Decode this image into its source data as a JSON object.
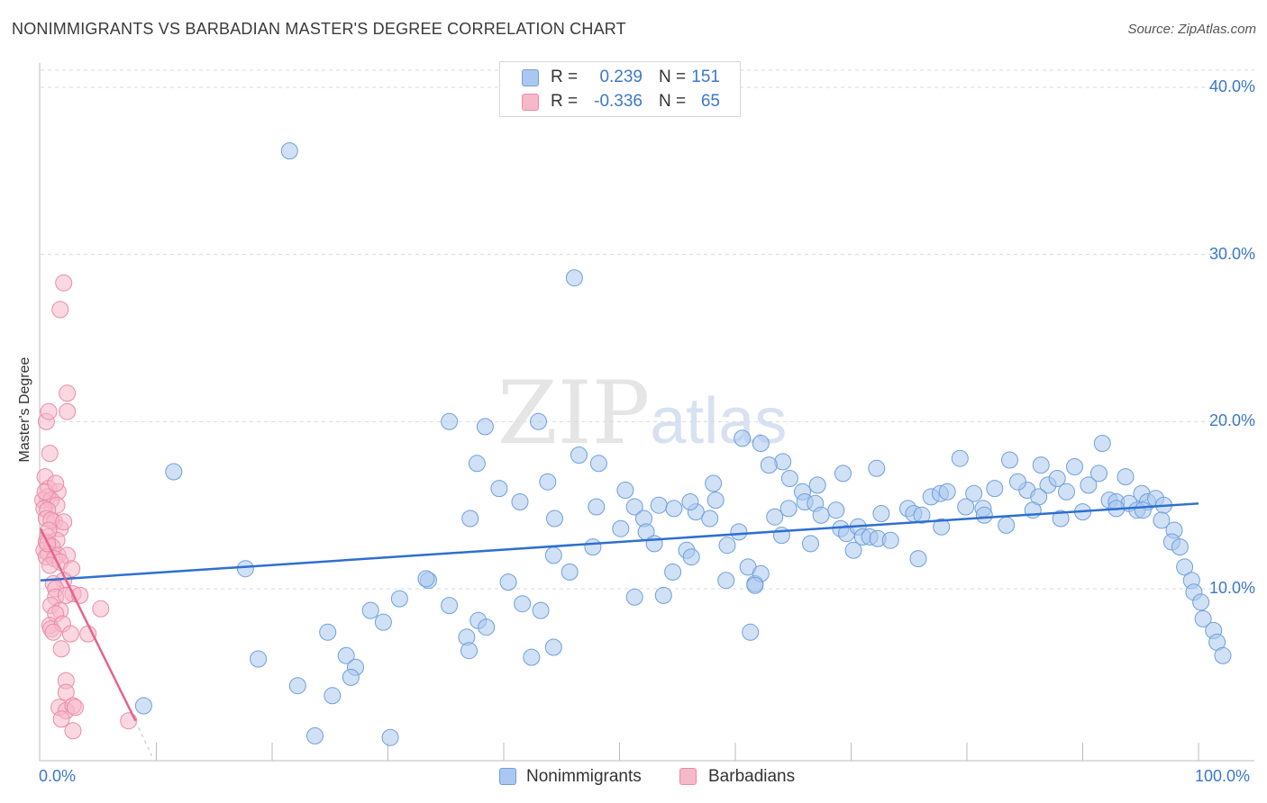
{
  "title": "NONIMMIGRANTS VS BARBADIAN MASTER'S DEGREE CORRELATION CHART",
  "source": "Source: ZipAtlas.com",
  "watermark": {
    "part1": "ZIP",
    "part2": "atlas"
  },
  "legend": {
    "r_label": "R =",
    "n_label": "N =",
    "rows": [
      {
        "name": "Nonimmigrants",
        "r": "0.239",
        "n": "151"
      },
      {
        "name": "Barbadians",
        "r": "-0.336",
        "n": "65"
      }
    ]
  },
  "colors": {
    "blue_fill": "#aac8ef",
    "blue_stroke": "#6f9fdc",
    "blue_line": "#2e6fd0",
    "pink_fill": "#f6b8cb",
    "pink_stroke": "#eb8aa8",
    "pink_line": "#e4648e",
    "tick_text": "#3b78c9",
    "grid": "#d9d9d9"
  },
  "chart_data": {
    "type": "scatter",
    "title": "NONIMMIGRANTS VS BARBADIAN MASTER'S DEGREE CORRELATION CHART",
    "xlabel": "",
    "ylabel": "Master's Degree",
    "xlim": [
      0,
      100
    ],
    "ylim": [
      0,
      42
    ],
    "x_tick_labels": [
      "0.0%",
      "100.0%"
    ],
    "y_ticks": [
      10,
      20,
      30,
      40
    ],
    "y_tick_labels": [
      "10.0%",
      "20.0%",
      "30.0%",
      "40.0%"
    ],
    "legend_position": "top-center",
    "series": [
      {
        "name": "Nonimmigrants",
        "r": 0.239,
        "n": 151,
        "trend": {
          "x": [
            0,
            100
          ],
          "y": [
            10.5,
            15.1
          ]
        },
        "points": [
          [
            21.5,
            36.2
          ],
          [
            46.1,
            28.6
          ],
          [
            11.5,
            17
          ],
          [
            8.9,
            3
          ],
          [
            17.7,
            11.2
          ],
          [
            23.7,
            1.2
          ],
          [
            30.2,
            1.1
          ],
          [
            35.3,
            20.0
          ],
          [
            43,
            20
          ],
          [
            38.4,
            19.7
          ],
          [
            37.7,
            17.5
          ],
          [
            39.6,
            16.0
          ],
          [
            41.4,
            15.2
          ],
          [
            37.1,
            14.2
          ],
          [
            44.4,
            14.2
          ],
          [
            43.8,
            16.4
          ],
          [
            46.5,
            18.0
          ],
          [
            48.2,
            17.5
          ],
          [
            48,
            14.9
          ],
          [
            47.7,
            12.5
          ],
          [
            44.3,
            12.0
          ],
          [
            45.7,
            11
          ],
          [
            50.5,
            15.9
          ],
          [
            51.3,
            14.9
          ],
          [
            52.1,
            14.2
          ],
          [
            50.1,
            13.6
          ],
          [
            52.3,
            13.4
          ],
          [
            53.4,
            15.0
          ],
          [
            54.7,
            14.8
          ],
          [
            53,
            12.7
          ],
          [
            55.8,
            12.3
          ],
          [
            54.6,
            11
          ],
          [
            56.6,
            14.6
          ],
          [
            57.8,
            14.2
          ],
          [
            58.3,
            15.3
          ],
          [
            60.3,
            13.4
          ],
          [
            59.3,
            12.6
          ],
          [
            61.1,
            11.3
          ],
          [
            61.7,
            10.3
          ],
          [
            62.2,
            10.9
          ],
          [
            63.4,
            14.3
          ],
          [
            64,
            13.2
          ],
          [
            64.6,
            14.8
          ],
          [
            65.8,
            15.8
          ],
          [
            66,
            15.2
          ],
          [
            66.9,
            15.1
          ],
          [
            67.4,
            14.4
          ],
          [
            66.5,
            12.7
          ],
          [
            68.7,
            14.7
          ],
          [
            69.1,
            13.6
          ],
          [
            69.6,
            13.3
          ],
          [
            70.2,
            12.3
          ],
          [
            70.6,
            13.7
          ],
          [
            71,
            13.1
          ],
          [
            71.6,
            13.1
          ],
          [
            72.6,
            14.5
          ],
          [
            72.3,
            13.0
          ],
          [
            73.4,
            12.9
          ],
          [
            74.9,
            14.8
          ],
          [
            75.4,
            14.5
          ],
          [
            75.8,
            11.8
          ],
          [
            76.1,
            14.4
          ],
          [
            76.9,
            15.5
          ],
          [
            77.7,
            15.7
          ],
          [
            78.3,
            15.8
          ],
          [
            79.4,
            17.8
          ],
          [
            80.6,
            15.7
          ],
          [
            81.4,
            14.8
          ],
          [
            81.5,
            14.4
          ],
          [
            82.4,
            16.0
          ],
          [
            83.7,
            17.7
          ],
          [
            85.2,
            15.9
          ],
          [
            86.4,
            17.4
          ],
          [
            87,
            16.2
          ],
          [
            87.8,
            16.6
          ],
          [
            86.2,
            15.5
          ],
          [
            88.6,
            15.8
          ],
          [
            88.1,
            14.2
          ],
          [
            89.3,
            17.3
          ],
          [
            91.7,
            18.7
          ],
          [
            90.5,
            16.2
          ],
          [
            91.4,
            16.9
          ],
          [
            92.3,
            15.3
          ],
          [
            92.9,
            15.2
          ],
          [
            94.0,
            15.1
          ],
          [
            95.1,
            15.7
          ],
          [
            95.6,
            15.2
          ],
          [
            96.3,
            15.4
          ],
          [
            97,
            15
          ],
          [
            96.8,
            14.1
          ],
          [
            97.9,
            13.5
          ],
          [
            97.7,
            12.8
          ],
          [
            98.4,
            12.5
          ],
          [
            98.8,
            11.3
          ],
          [
            99.4,
            10.5
          ],
          [
            99.6,
            9.8
          ],
          [
            100.2,
            9.2
          ],
          [
            100.4,
            8.2
          ],
          [
            101.3,
            7.5
          ],
          [
            101.6,
            6.8
          ],
          [
            102.1,
            6.0
          ],
          [
            85.7,
            14.7
          ],
          [
            83.4,
            13.8
          ],
          [
            79.9,
            14.9
          ],
          [
            77.8,
            13.7
          ],
          [
            72.2,
            17.2
          ],
          [
            69.3,
            16.9
          ],
          [
            67.1,
            16.2
          ],
          [
            64.1,
            17.6
          ],
          [
            62.9,
            17.4
          ],
          [
            58.1,
            16.3
          ],
          [
            56.1,
            15.2
          ],
          [
            62.2,
            18.7
          ],
          [
            64.7,
            16.6
          ],
          [
            60.6,
            19.0
          ],
          [
            84.4,
            16.4
          ],
          [
            90,
            14.6
          ],
          [
            93.7,
            16.7
          ],
          [
            92.9,
            14.8
          ],
          [
            94.7,
            14.7
          ],
          [
            95.2,
            14.7
          ],
          [
            18.8,
            5.8
          ],
          [
            22.2,
            4.2
          ],
          [
            25.2,
            3.6
          ],
          [
            26.4,
            6.0
          ],
          [
            27.2,
            5.3
          ],
          [
            26.8,
            4.7
          ],
          [
            24.8,
            7.4
          ],
          [
            28.5,
            8.7
          ],
          [
            29.6,
            8.0
          ],
          [
            31,
            9.4
          ],
          [
            33.5,
            10.5
          ],
          [
            33.3,
            10.6
          ],
          [
            35.3,
            9.0
          ],
          [
            36.8,
            7.1
          ],
          [
            37,
            6.3
          ],
          [
            37.8,
            8.1
          ],
          [
            38.5,
            7.7
          ],
          [
            40.4,
            10.4
          ],
          [
            41.6,
            9.1
          ],
          [
            42.4,
            5.9
          ],
          [
            43.2,
            8.7
          ],
          [
            44.3,
            6.5
          ],
          [
            51.3,
            9.5
          ],
          [
            53.8,
            9.6
          ],
          [
            56.2,
            11.9
          ],
          [
            59.2,
            10.5
          ],
          [
            61.7,
            10.2
          ],
          [
            61.3,
            7.4
          ]
        ]
      },
      {
        "name": "Barbadians",
        "r": -0.336,
        "n": 65,
        "trend": {
          "x": [
            0,
            8.2
          ],
          "y": [
            13.6,
            2.1
          ]
        },
        "trend_extension": {
          "x": [
            8.2,
            9.6
          ],
          "y": [
            2.1,
            0
          ]
        },
        "points": [
          [
            2.0,
            28.3
          ],
          [
            0.5,
            20.0
          ],
          [
            1.7,
            26.7
          ],
          [
            2.3,
            21.7
          ],
          [
            2.3,
            20.6
          ],
          [
            0.7,
            20.6
          ],
          [
            0.8,
            18.1
          ],
          [
            0.4,
            16.7
          ],
          [
            0.7,
            16.0
          ],
          [
            1.5,
            15.8
          ],
          [
            0.6,
            15.5
          ],
          [
            0.2,
            15.3
          ],
          [
            0.9,
            15.3
          ],
          [
            1.4,
            15.0
          ],
          [
            0.3,
            14.8
          ],
          [
            0.6,
            14.7
          ],
          [
            0.5,
            14.2
          ],
          [
            1.2,
            14.0
          ],
          [
            1.7,
            13.6
          ],
          [
            0.6,
            13.1
          ],
          [
            0.5,
            12.8
          ],
          [
            1.4,
            12.9
          ],
          [
            1.0,
            12.5
          ],
          [
            0.3,
            12.3
          ],
          [
            0.7,
            12.1
          ],
          [
            1.5,
            12.0
          ],
          [
            2.3,
            12.0
          ],
          [
            0.5,
            11.9
          ],
          [
            1.2,
            11.8
          ],
          [
            1.7,
            11.6
          ],
          [
            0.8,
            11.4
          ],
          [
            2.7,
            11.2
          ],
          [
            2.0,
            10.5
          ],
          [
            1.1,
            10.3
          ],
          [
            1.3,
            10.0
          ],
          [
            2.8,
            9.7
          ],
          [
            1.3,
            9.5
          ],
          [
            2.2,
            9.6
          ],
          [
            3.4,
            9.6
          ],
          [
            0.9,
            9.0
          ],
          [
            1.7,
            8.7
          ],
          [
            1.3,
            8.5
          ],
          [
            0.8,
            7.8
          ],
          [
            0.9,
            7.6
          ],
          [
            1.9,
            7.9
          ],
          [
            1.1,
            7.4
          ],
          [
            2.6,
            7.3
          ],
          [
            4.1,
            7.3
          ],
          [
            5.2,
            8.8
          ],
          [
            1.8,
            6.4
          ],
          [
            2.2,
            4.5
          ],
          [
            2.2,
            3.8
          ],
          [
            1.6,
            2.9
          ],
          [
            2.2,
            2.7
          ],
          [
            2.8,
            3.0
          ],
          [
            3.0,
            2.9
          ],
          [
            1.8,
            2.2
          ],
          [
            2.8,
            1.5
          ],
          [
            7.6,
            2.1
          ],
          [
            0.4,
            15.8
          ],
          [
            0.9,
            14.1
          ],
          [
            0.6,
            12.7
          ],
          [
            1.3,
            16.3
          ],
          [
            0.7,
            13.5
          ],
          [
            2.0,
            14.0
          ]
        ]
      }
    ]
  }
}
